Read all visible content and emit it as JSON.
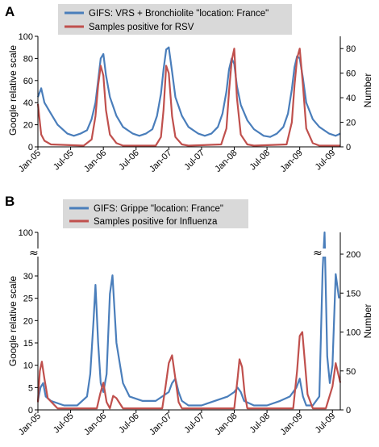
{
  "chart_data": [
    {
      "panel": "A",
      "type": "line",
      "ylabel": "Google relative scale",
      "y2label": "Number",
      "ylim": [
        0,
        100
      ],
      "y2lim": [
        0,
        90
      ],
      "yticks": [
        "0",
        "20",
        "40",
        "60",
        "80",
        "100"
      ],
      "y2ticks": [
        "0",
        "20",
        "40",
        "60",
        "80"
      ],
      "xticks": [
        "Jan-05",
        "Jul-05",
        "Jan-06",
        "Jul-06",
        "Jan-07",
        "Jul-07",
        "Jan-08",
        "Jul-08",
        "Jan-09",
        "Jul-09"
      ],
      "colors": {
        "google": "#4a7ebb",
        "samples": "#c0504d"
      },
      "legend": [
        "GIFS: VRS + Bronchiolite \"location: France\"",
        "Samples positive for RSV"
      ],
      "series": [
        {
          "name": "GIFS: VRS + Bronchiolite \"location: France\"",
          "axis": "left",
          "color": "#4a7ebb",
          "x": [
            2005.0,
            2005.05,
            2005.1,
            2005.2,
            2005.3,
            2005.45,
            2005.55,
            2005.65,
            2005.75,
            2005.82,
            2005.88,
            2005.92,
            2005.96,
            2006.0,
            2006.04,
            2006.1,
            2006.2,
            2006.3,
            2006.45,
            2006.55,
            2006.65,
            2006.75,
            2006.82,
            2006.88,
            2006.92,
            2006.96,
            2007.0,
            2007.05,
            2007.1,
            2007.2,
            2007.3,
            2007.45,
            2007.55,
            2007.65,
            2007.75,
            2007.82,
            2007.88,
            2007.92,
            2007.96,
            2008.0,
            2008.04,
            2008.1,
            2008.2,
            2008.3,
            2008.45,
            2008.55,
            2008.65,
            2008.75,
            2008.82,
            2008.88,
            2008.92,
            2008.96,
            2009.0,
            2009.05,
            2009.1,
            2009.2,
            2009.3,
            2009.45,
            2009.55,
            2009.62
          ],
          "values": [
            45,
            53,
            40,
            30,
            20,
            12,
            10,
            12,
            15,
            25,
            40,
            60,
            80,
            84,
            65,
            45,
            28,
            18,
            12,
            10,
            12,
            16,
            28,
            48,
            70,
            88,
            90,
            68,
            45,
            28,
            18,
            12,
            10,
            12,
            18,
            30,
            50,
            70,
            80,
            75,
            55,
            38,
            24,
            16,
            10,
            9,
            12,
            18,
            30,
            52,
            72,
            82,
            80,
            62,
            40,
            25,
            18,
            12,
            10,
            12
          ]
        },
        {
          "name": "Samples positive for RSV",
          "axis": "right",
          "color": "#c0504d",
          "x": [
            2005.0,
            2005.05,
            2005.1,
            2005.2,
            2005.7,
            2005.82,
            2005.88,
            2005.92,
            2005.96,
            2006.0,
            2006.04,
            2006.1,
            2006.2,
            2006.3,
            2006.8,
            2006.88,
            2006.92,
            2006.96,
            2007.0,
            2007.05,
            2007.1,
            2007.2,
            2007.3,
            2007.8,
            2007.88,
            2007.92,
            2007.96,
            2008.0,
            2008.04,
            2008.1,
            2008.2,
            2008.3,
            2008.8,
            2008.88,
            2008.92,
            2008.96,
            2009.0,
            2009.05,
            2009.1,
            2009.2,
            2009.3,
            2009.62
          ],
          "values": [
            35,
            10,
            5,
            2,
            1,
            6,
            25,
            50,
            66,
            58,
            30,
            10,
            3,
            1,
            1,
            8,
            30,
            66,
            60,
            25,
            8,
            2,
            1,
            2,
            15,
            45,
            70,
            80,
            40,
            10,
            2,
            1,
            2,
            20,
            50,
            72,
            80,
            50,
            15,
            3,
            1,
            1
          ]
        }
      ]
    },
    {
      "panel": "B",
      "type": "line",
      "ylabel": "Google relative scale",
      "y2label": "Number",
      "ylim": [
        0,
        100
      ],
      "y2lim": [
        0,
        200
      ],
      "axis_break": "≈",
      "yticks": [
        "0",
        "5",
        "10",
        "15",
        "20",
        "25",
        "30",
        "100"
      ],
      "y2ticks": [
        "0",
        "50",
        "100",
        "150",
        "200"
      ],
      "xticks": [
        "Jan-05",
        "Jul-05",
        "Jan-06",
        "Jul-06",
        "Jan-07",
        "Jul-07",
        "Jan-08",
        "Jul-08",
        "Jan-09",
        "Jul-09"
      ],
      "colors": {
        "google": "#4a7ebb",
        "samples": "#c0504d"
      },
      "legend": [
        "GIFS: Grippe \"location: France\"",
        "Samples positive for Influenza"
      ],
      "series": [
        {
          "name": "GIFS: Grippe \"location: France\"",
          "axis": "left",
          "color": "#4a7ebb",
          "x": [
            2005.0,
            2005.04,
            2005.08,
            2005.12,
            2005.2,
            2005.4,
            2005.6,
            2005.75,
            2005.8,
            2005.85,
            2005.88,
            2005.92,
            2005.96,
            2006.0,
            2006.05,
            2006.1,
            2006.14,
            2006.2,
            2006.3,
            2006.4,
            2006.6,
            2006.8,
            2006.9,
            2007.0,
            2007.05,
            2007.1,
            2007.15,
            2007.2,
            2007.3,
            2007.5,
            2007.7,
            2007.9,
            2008.0,
            2008.05,
            2008.1,
            2008.15,
            2008.3,
            2008.5,
            2008.7,
            2008.85,
            2008.95,
            2009.0,
            2009.05,
            2009.1,
            2009.2,
            2009.3,
            2009.35,
            2009.38,
            2009.42,
            2009.46,
            2009.5,
            2009.55,
            2009.6
          ],
          "values": [
            2,
            5,
            6,
            3,
            2,
            1,
            1,
            3,
            8,
            20,
            28,
            15,
            6,
            4,
            8,
            26,
            31,
            15,
            6,
            3,
            2,
            2,
            3,
            4,
            6,
            7,
            4,
            2,
            1,
            1,
            2,
            3,
            4,
            5,
            4,
            2,
            1,
            1,
            2,
            3,
            5,
            7,
            3,
            1,
            1,
            3,
            40,
            100,
            12,
            6,
            10,
            33,
            25
          ]
        },
        {
          "name": "Samples positive for Influenza",
          "axis": "right",
          "color": "#c0504d",
          "x": [
            2005.0,
            2005.03,
            2005.06,
            2005.1,
            2005.15,
            2005.3,
            2005.9,
            2005.95,
            2006.0,
            2006.05,
            2006.1,
            2006.15,
            2006.2,
            2006.3,
            2006.9,
            2006.95,
            2007.0,
            2007.05,
            2007.1,
            2007.15,
            2007.2,
            2008.0,
            2008.05,
            2008.08,
            2008.12,
            2008.16,
            2008.2,
            2008.9,
            2008.96,
            2009.0,
            2009.04,
            2009.08,
            2009.12,
            2009.2,
            2009.4,
            2009.5,
            2009.55,
            2009.62
          ],
          "values": [
            10,
            50,
            62,
            40,
            15,
            2,
            2,
            20,
            35,
            10,
            2,
            18,
            15,
            2,
            2,
            30,
            60,
            70,
            40,
            10,
            2,
            2,
            40,
            65,
            55,
            20,
            2,
            2,
            50,
            95,
            100,
            60,
            20,
            2,
            2,
            30,
            60,
            35
          ]
        }
      ]
    }
  ]
}
